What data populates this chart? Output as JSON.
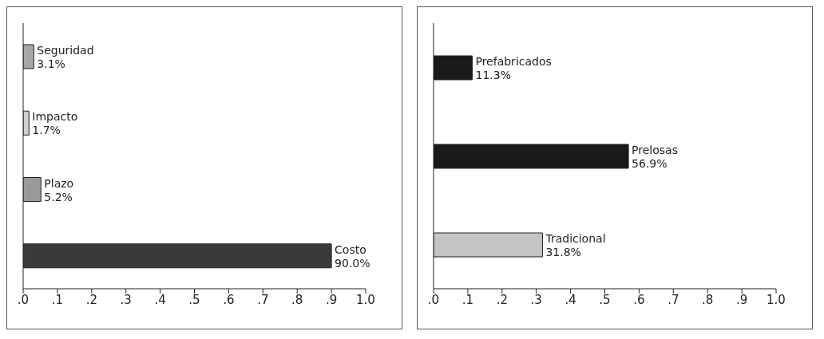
{
  "chart_data": [
    {
      "type": "bar",
      "orientation": "horizontal",
      "categories": [
        null,
        null,
        null,
        null
      ],
      "values": [
        0.031,
        0.017,
        0.052,
        0.9
      ],
      "colors": [
        "#a8a8a8",
        "#d0d0d0",
        "#9a9a9a",
        "#3a3a3a"
      ],
      "value_labels": [
        "Seguridad 3.1%",
        "Impacto 1.7%",
        "Plazo 5.2%",
        "Costo 90.0%"
      ],
      "xlim": [
        0,
        1
      ],
      "xticks": [
        {
          "value": 0,
          "label": ".0"
        },
        {
          "value": 0.1,
          "label": ".1"
        },
        {
          "value": 0.2,
          "label": ".2"
        },
        {
          "value": 0.3,
          "label": ".3"
        },
        {
          "value": 0.4,
          "label": ".4"
        },
        {
          "value": 0.5,
          "label": ".5"
        },
        {
          "value": 0.6,
          "label": ".6"
        },
        {
          "value": 0.7,
          "label": ".7"
        },
        {
          "value": 0.8,
          "label": ".8"
        },
        {
          "value": 0.9,
          "label": ".9"
        },
        {
          "value": 1,
          "label": "1.0"
        }
      ],
      "tick_labels": "x",
      "grid": false,
      "legend": false
    },
    {
      "type": "bar",
      "orientation": "horizontal",
      "categories": [
        null,
        null,
        null
      ],
      "values": [
        0.113,
        0.569,
        0.318
      ],
      "colors": [
        "#1a1a1a",
        "#1a1a1a",
        "#c4c4c4"
      ],
      "value_labels": [
        "Prefabricados 11.3%",
        "Prelosas 56.9%",
        "Tradicional 31.8%"
      ],
      "xlim": [
        0,
        1
      ],
      "xticks": [
        {
          "value": 0,
          "label": ".0"
        },
        {
          "value": 0.1,
          "label": ".1"
        },
        {
          "value": 0.2,
          "label": ".2"
        },
        {
          "value": 0.3,
          "label": ".3"
        },
        {
          "value": 0.4,
          "label": ".4"
        },
        {
          "value": 0.5,
          "label": ".5"
        },
        {
          "value": 0.6,
          "label": ".6"
        },
        {
          "value": 0.7,
          "label": ".7"
        },
        {
          "value": 0.8,
          "label": ".8"
        },
        {
          "value": 0.9,
          "label": ".9"
        },
        {
          "value": 1,
          "label": "1.0"
        }
      ],
      "tick_labels": "x",
      "grid": false,
      "legend": false
    }
  ]
}
